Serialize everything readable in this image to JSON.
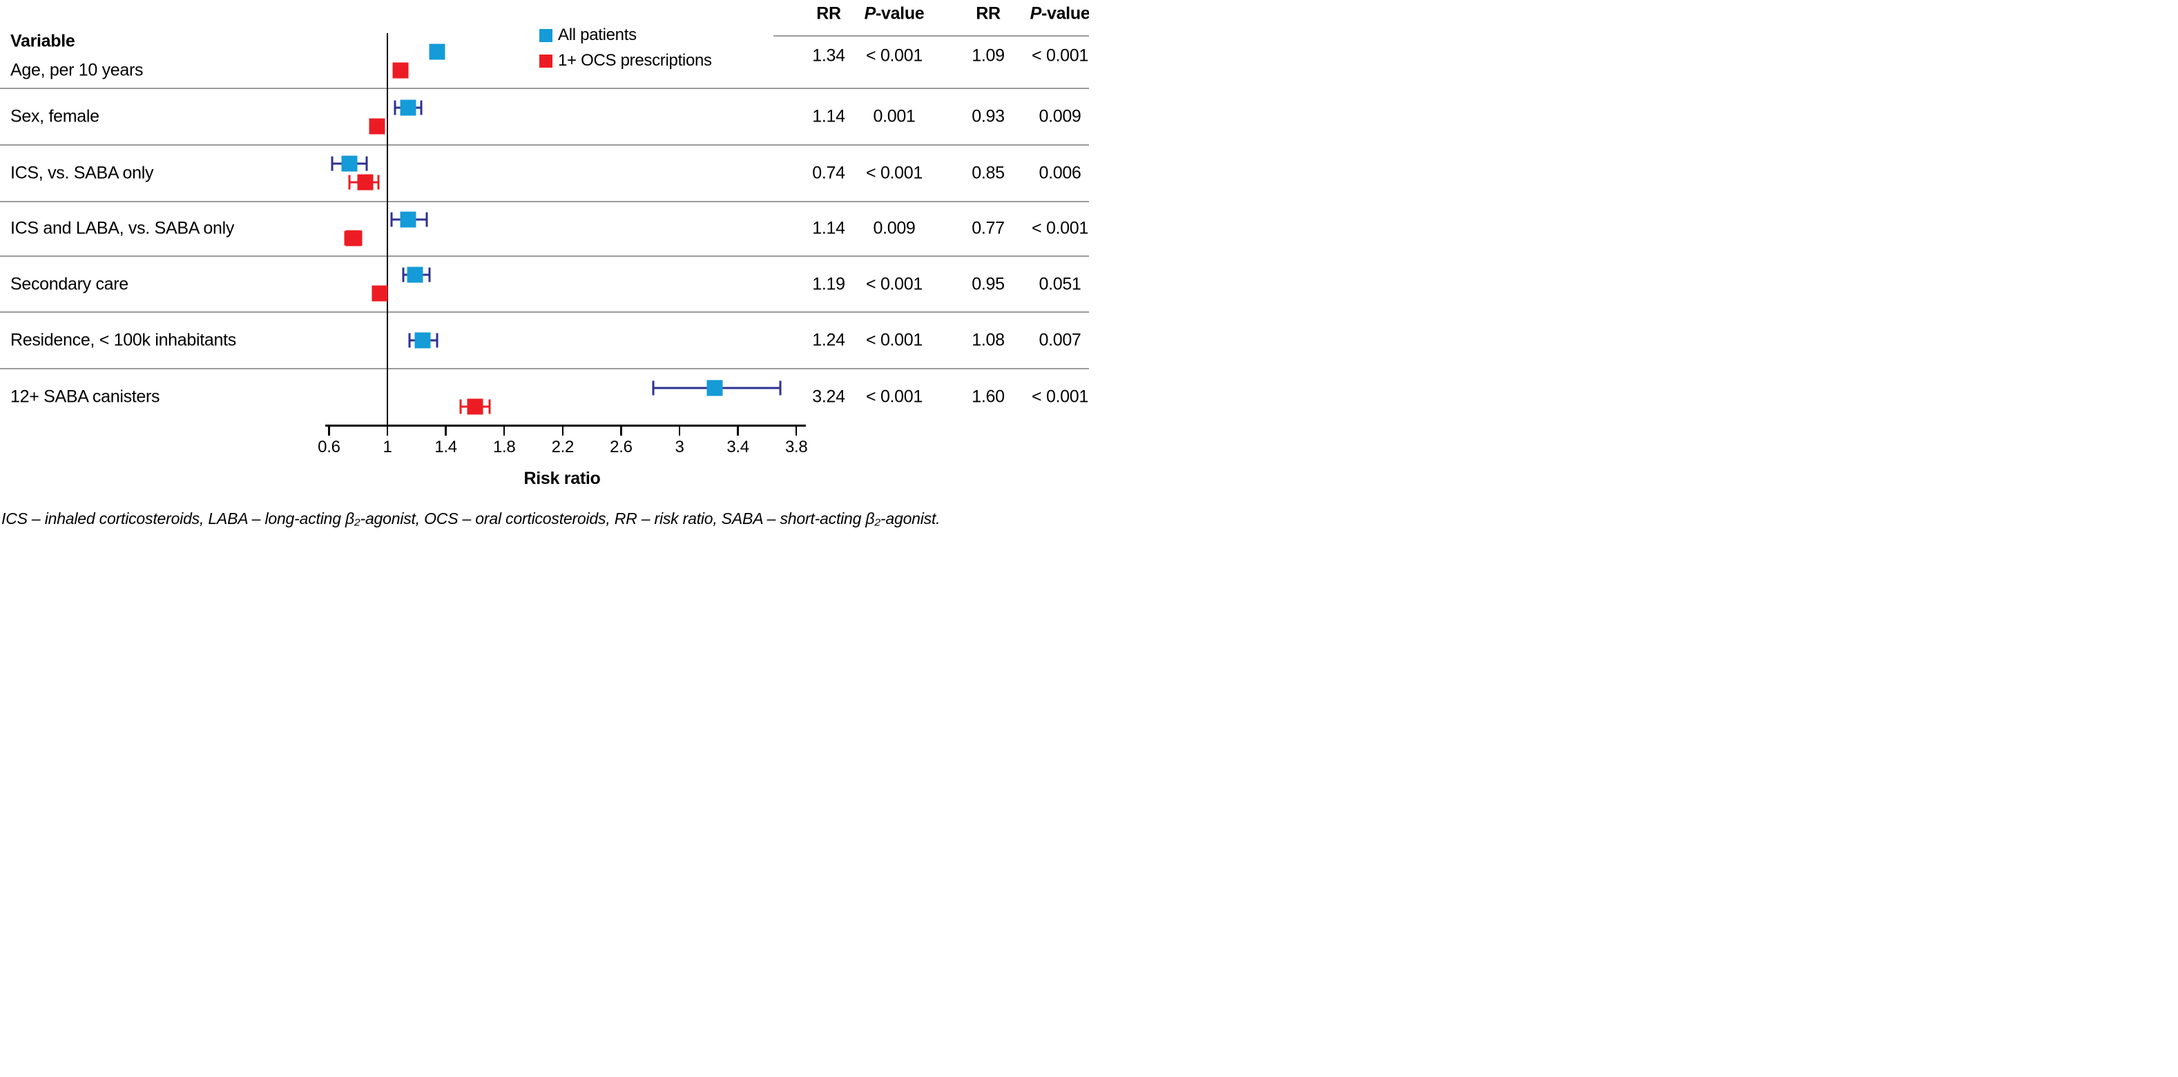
{
  "variable_header": "Variable",
  "legend": {
    "items": [
      {
        "label": "All patients",
        "color": "#149bd8"
      },
      {
        "label": "1+ OCS prescriptions",
        "color": "#ed1c24"
      }
    ]
  },
  "table": {
    "rr_header": "RR",
    "p_header_italic": "P",
    "p_header_rest": "-value"
  },
  "footnote": "ICS – inhaled corticosteroids, LABA – long-acting β₂-agonist, OCS – oral corticosteroids, RR – risk ratio, SABA – short-acting β₂-agonist.",
  "chart_data": {
    "type": "forest",
    "x_axis": {
      "label": "Risk ratio",
      "ticks": [
        0.6,
        1,
        1.4,
        1.8,
        2.2,
        2.6,
        3,
        3.4,
        3.8
      ],
      "range": [
        0.6,
        3.8
      ],
      "reference_line": 1,
      "grid": false
    },
    "legend_position": "top",
    "series_meta": [
      {
        "name": "All patients",
        "key": "all-patients",
        "color": "#149bd8",
        "error_color": "#2e3192"
      },
      {
        "name": "1+ OCS prescriptions",
        "key": "ocs",
        "color": "#ed1c24",
        "error_color": "#ed1c24"
      }
    ],
    "rows": [
      {
        "variable": "Age, per 10 years",
        "series": [
          {
            "name": "All patients",
            "rr": 1.34,
            "rr_text": "1.34",
            "ci_low": null,
            "ci_high": null,
            "p": "< 0.001",
            "in_plot": true
          },
          {
            "name": "1+ OCS prescriptions",
            "rr": 1.09,
            "rr_text": "1.09",
            "ci_low": null,
            "ci_high": null,
            "p": "< 0.001",
            "in_plot": true
          }
        ]
      },
      {
        "variable": "Sex, female",
        "series": [
          {
            "name": "All patients",
            "rr": 1.14,
            "rr_text": "1.14",
            "ci_low": 1.05,
            "ci_high": 1.23,
            "p": "0.001",
            "in_plot": true
          },
          {
            "name": "1+ OCS prescriptions",
            "rr": 0.93,
            "rr_text": "0.93",
            "ci_low": null,
            "ci_high": null,
            "p": "0.009",
            "in_plot": true
          }
        ]
      },
      {
        "variable": "ICS, vs. SABA only",
        "series": [
          {
            "name": "All patients",
            "rr": 0.74,
            "rr_text": "0.74",
            "ci_low": 0.62,
            "ci_high": 0.86,
            "p": "< 0.001",
            "in_plot": true
          },
          {
            "name": "1+ OCS prescriptions",
            "rr": 0.85,
            "rr_text": "0.85",
            "ci_low": 0.74,
            "ci_high": 0.94,
            "p": "0.006",
            "in_plot": true
          }
        ]
      },
      {
        "variable": "ICS and LABA, vs. SABA only",
        "series": [
          {
            "name": "All patients",
            "rr": 1.14,
            "rr_text": "1.14",
            "ci_low": 1.03,
            "ci_high": 1.27,
            "p": "0.009",
            "in_plot": true
          },
          {
            "name": "1+ OCS prescriptions",
            "rr": 0.77,
            "rr_text": "0.77",
            "ci_low": 0.71,
            "ci_high": 0.82,
            "p": "< 0.001",
            "in_plot": true
          }
        ]
      },
      {
        "variable": "Secondary care",
        "series": [
          {
            "name": "All patients",
            "rr": 1.19,
            "rr_text": "1.19",
            "ci_low": 1.11,
            "ci_high": 1.29,
            "p": "< 0.001",
            "in_plot": true
          },
          {
            "name": "1+ OCS prescriptions",
            "rr": 0.95,
            "rr_text": "0.95",
            "ci_low": null,
            "ci_high": null,
            "p": "0.051",
            "in_plot": true
          }
        ]
      },
      {
        "variable": "Residence, < 100k inhabitants",
        "series": [
          {
            "name": "All patients",
            "rr": 1.24,
            "rr_text": "1.24",
            "ci_low": 1.15,
            "ci_high": 1.34,
            "p": "< 0.001",
            "in_plot": true
          },
          {
            "name": "1+ OCS prescriptions",
            "rr": 1.08,
            "rr_text": "1.08",
            "ci_low": null,
            "ci_high": null,
            "p": "0.007",
            "in_plot": false
          }
        ]
      },
      {
        "variable": "12+ SABA canisters",
        "series": [
          {
            "name": "All patients",
            "rr": 3.24,
            "rr_text": "3.24",
            "ci_low": 2.82,
            "ci_high": 3.69,
            "p": "< 0.001",
            "in_plot": true
          },
          {
            "name": "1+ OCS prescriptions",
            "rr": 1.6,
            "rr_text": "1.60",
            "ci_low": 1.5,
            "ci_high": 1.7,
            "p": "< 0.001",
            "in_plot": true
          }
        ]
      }
    ]
  }
}
